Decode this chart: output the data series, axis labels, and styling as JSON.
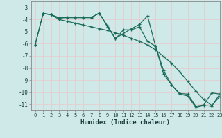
{
  "xlabel": "Humidex (Indice chaleur)",
  "xlim": [
    -0.5,
    23
  ],
  "ylim": [
    -11.5,
    -2.5
  ],
  "yticks": [
    -3,
    -4,
    -5,
    -6,
    -7,
    -8,
    -9,
    -10,
    -11
  ],
  "xticks": [
    0,
    1,
    2,
    3,
    4,
    5,
    6,
    7,
    8,
    9,
    10,
    11,
    12,
    13,
    14,
    15,
    16,
    17,
    18,
    19,
    20,
    21,
    22,
    23
  ],
  "bg_color": "#cfe9e9",
  "grid_color": "#e8c8c8",
  "line_color": "#1a6b5a",
  "line1_x": [
    0,
    1,
    2,
    3,
    4,
    5,
    6,
    7,
    8,
    9,
    10,
    11,
    12,
    13,
    14,
    15,
    16,
    17,
    18,
    19,
    20,
    21,
    22,
    23
  ],
  "line1_y": [
    -6.1,
    -3.5,
    -3.6,
    -3.9,
    -3.8,
    -3.8,
    -3.8,
    -3.8,
    -3.5,
    -4.5,
    -5.6,
    -4.85,
    -4.85,
    -4.6,
    -5.8,
    -6.2,
    -8.2,
    -9.4,
    -10.1,
    -10.15,
    -11.15,
    -11.05,
    -10.05,
    -10.15
  ],
  "line2_x": [
    0,
    1,
    2,
    3,
    4,
    5,
    6,
    7,
    8,
    9,
    10,
    11,
    12,
    13,
    14,
    15,
    16,
    17,
    18,
    19,
    20,
    21,
    22,
    23
  ],
  "line2_y": [
    -6.1,
    -3.5,
    -3.6,
    -4.0,
    -4.15,
    -4.3,
    -4.45,
    -4.6,
    -4.75,
    -4.9,
    -5.1,
    -5.3,
    -5.55,
    -5.8,
    -6.1,
    -6.5,
    -7.05,
    -7.6,
    -8.3,
    -9.1,
    -9.9,
    -10.6,
    -11.1,
    -10.35
  ],
  "line3_x": [
    1,
    2,
    3,
    4,
    5,
    6,
    7,
    8,
    9,
    10,
    11,
    12,
    13,
    14,
    15,
    16,
    17,
    18,
    19,
    20,
    21,
    22,
    23
  ],
  "line3_y": [
    -3.5,
    -3.6,
    -3.85,
    -3.85,
    -3.85,
    -3.85,
    -3.85,
    -3.45,
    -4.6,
    -5.55,
    -5.15,
    -4.75,
    -4.4,
    -3.7,
    -6.2,
    -8.5,
    -9.4,
    -10.15,
    -10.3,
    -11.25,
    -11.1,
    -11.15,
    -10.15
  ]
}
